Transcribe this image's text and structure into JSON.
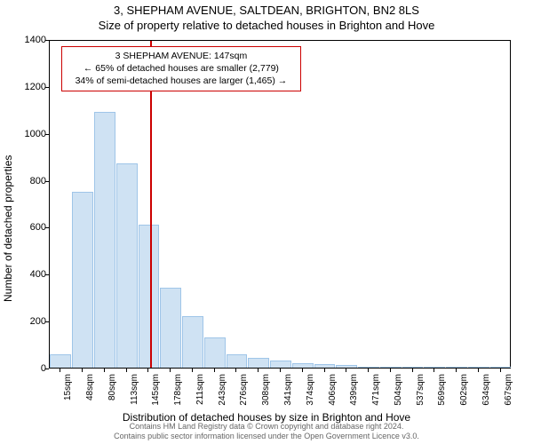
{
  "header": {
    "address": "3, SHEPHAM AVENUE, SALTDEAN, BRIGHTON, BN2 8LS",
    "subtitle": "Size of property relative to detached houses in Brighton and Hove"
  },
  "chart": {
    "type": "histogram",
    "y_axis_label": "Number of detached properties",
    "x_axis_label": "Distribution of detached houses by size in Brighton and Hove",
    "ylim": [
      0,
      1400
    ],
    "ytick_step": 200,
    "yticks": [
      0,
      200,
      400,
      600,
      800,
      1000,
      1200,
      1400
    ],
    "x_categories": [
      "15sqm",
      "48sqm",
      "80sqm",
      "113sqm",
      "145sqm",
      "178sqm",
      "211sqm",
      "243sqm",
      "276sqm",
      "308sqm",
      "341sqm",
      "374sqm",
      "406sqm",
      "439sqm",
      "471sqm",
      "504sqm",
      "537sqm",
      "569sqm",
      "602sqm",
      "634sqm",
      "667sqm"
    ],
    "bar_values": [
      55,
      750,
      1090,
      870,
      610,
      340,
      220,
      130,
      55,
      40,
      30,
      20,
      15,
      10,
      5,
      3,
      2,
      2,
      1,
      1,
      1
    ],
    "bar_fill": "#cfe2f3",
    "bar_stroke": "#9fc5e8",
    "background_color": "#ffffff",
    "axis_color": "#000000",
    "marker": {
      "position_sqm": 147,
      "color": "#cc0000",
      "annotation_line1": "3 SHEPHAM AVENUE: 147sqm",
      "annotation_line2": "← 65% of detached houses are smaller (2,779)",
      "annotation_line3": "34% of semi-detached houses are larger (1,465) →"
    },
    "title_fontsize": 13,
    "label_fontsize": 12,
    "tick_fontsize": 11
  },
  "footer": {
    "line1": "Contains HM Land Registry data © Crown copyright and database right 2024.",
    "line2": "Contains public sector information licensed under the Open Government Licence v3.0."
  }
}
